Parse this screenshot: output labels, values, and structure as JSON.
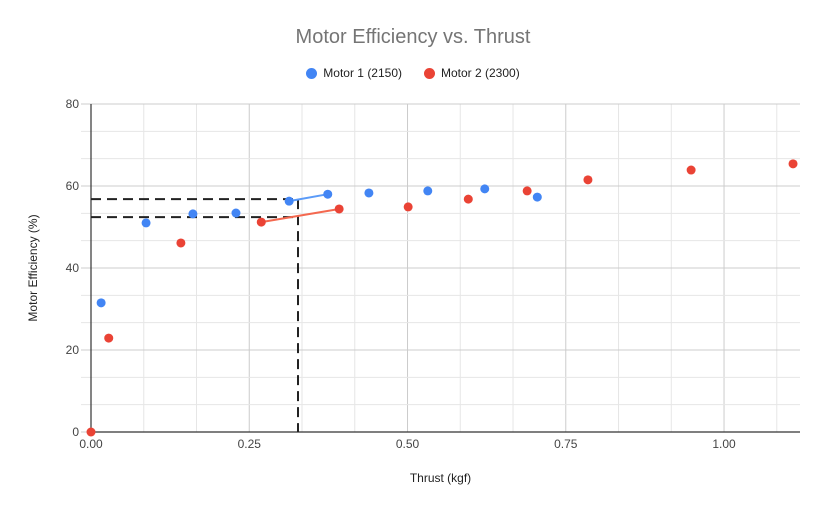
{
  "chart_data": {
    "type": "scatter",
    "title": "Motor Efficiency vs. Thrust",
    "xlabel": "Thrust (kgf)",
    "ylabel": "Motor Efficiency (%)",
    "xlim": [
      0,
      1.12
    ],
    "ylim": [
      0,
      80
    ],
    "x_ticks": [
      "0.00",
      "0.25",
      "0.50",
      "0.75",
      "1.00"
    ],
    "y_ticks": [
      "0",
      "20",
      "40",
      "60",
      "80"
    ],
    "grid": true,
    "legend_position": "top",
    "series": [
      {
        "name": "Motor 1 (2150)",
        "color": "#4285f4",
        "points": [
          [
            0.016,
            31.5
          ],
          [
            0.087,
            51.0
          ],
          [
            0.161,
            53.2
          ],
          [
            0.229,
            53.4
          ],
          [
            0.313,
            56.3
          ],
          [
            0.374,
            58.0
          ],
          [
            0.439,
            58.3
          ],
          [
            0.532,
            58.8
          ],
          [
            0.622,
            59.3
          ],
          [
            0.705,
            57.3
          ]
        ],
        "segment": [
          [
            0.313,
            56.3
          ],
          [
            0.374,
            58.0
          ]
        ]
      },
      {
        "name": "Motor 2 (2300)",
        "color": "#ea4335",
        "points": [
          [
            0,
            0
          ],
          [
            0.028,
            22.9
          ],
          [
            0.142,
            46.1
          ],
          [
            0.269,
            51.2
          ],
          [
            0.392,
            54.4
          ],
          [
            0.501,
            54.9
          ],
          [
            0.596,
            56.8
          ],
          [
            0.689,
            58.8
          ],
          [
            0.785,
            61.5
          ],
          [
            0.948,
            63.9
          ],
          [
            1.109,
            65.4
          ]
        ],
        "segment": [
          [
            0.269,
            51.2
          ],
          [
            0.392,
            54.4
          ]
        ]
      }
    ],
    "reference_lines": {
      "vertical_x": 0.327,
      "horizontal_y": [
        56.8,
        52.4
      ]
    }
  }
}
